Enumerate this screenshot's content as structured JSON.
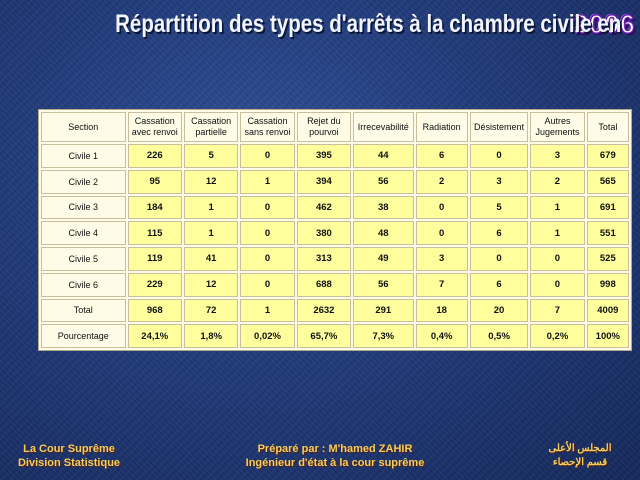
{
  "title": {
    "text": "Répartition des types d'arrêts à la chambre civile en",
    "year": "2006"
  },
  "table": {
    "headers": [
      "Section",
      "Cassation avec renvoi",
      "Cassation partielle",
      "Cassation sans renvoi",
      "Rejet du pourvoi",
      "Irrecevabilité",
      "Radiation",
      "Désistement",
      "Autres Jugements",
      "Total"
    ],
    "rows": [
      {
        "label": "Civile 1",
        "values": [
          "226",
          "5",
          "0",
          "395",
          "44",
          "6",
          "0",
          "3",
          "679"
        ]
      },
      {
        "label": "Civile 2",
        "values": [
          "95",
          "12",
          "1",
          "394",
          "56",
          "2",
          "3",
          "2",
          "565"
        ]
      },
      {
        "label": "Civile 3",
        "values": [
          "184",
          "1",
          "0",
          "462",
          "38",
          "0",
          "5",
          "1",
          "691"
        ]
      },
      {
        "label": "Civile 4",
        "values": [
          "115",
          "1",
          "0",
          "380",
          "48",
          "0",
          "6",
          "1",
          "551"
        ]
      },
      {
        "label": "Civile 5",
        "values": [
          "119",
          "41",
          "0",
          "313",
          "49",
          "3",
          "0",
          "0",
          "525"
        ]
      },
      {
        "label": "Civile 6",
        "values": [
          "229",
          "12",
          "0",
          "688",
          "56",
          "7",
          "6",
          "0",
          "998"
        ]
      },
      {
        "label": "Total",
        "values": [
          "968",
          "72",
          "1",
          "2632",
          "291",
          "18",
          "20",
          "7",
          "4009"
        ]
      },
      {
        "label": "Pourcentage",
        "values": [
          "24,1%",
          "1,8%",
          "0,02%",
          "65,7%",
          "7,3%",
          "0,4%",
          "0,5%",
          "0,2%",
          "100%"
        ]
      }
    ]
  },
  "footer": {
    "left_line1": "La Cour Suprême",
    "left_line2": "Division Statistique",
    "center_line1": "Préparé par : M'hamed ZAHIR",
    "center_line2": "Ingénieur d'état à la cour suprême",
    "right_line1": "المجلس الأعلى",
    "right_line2": "قسم الإحصاء"
  },
  "colors": {
    "background": "#203a7a",
    "cell_highlight": "#feff9c",
    "footer_text": "#f0d060",
    "year_outline": "#6a1aa8"
  }
}
